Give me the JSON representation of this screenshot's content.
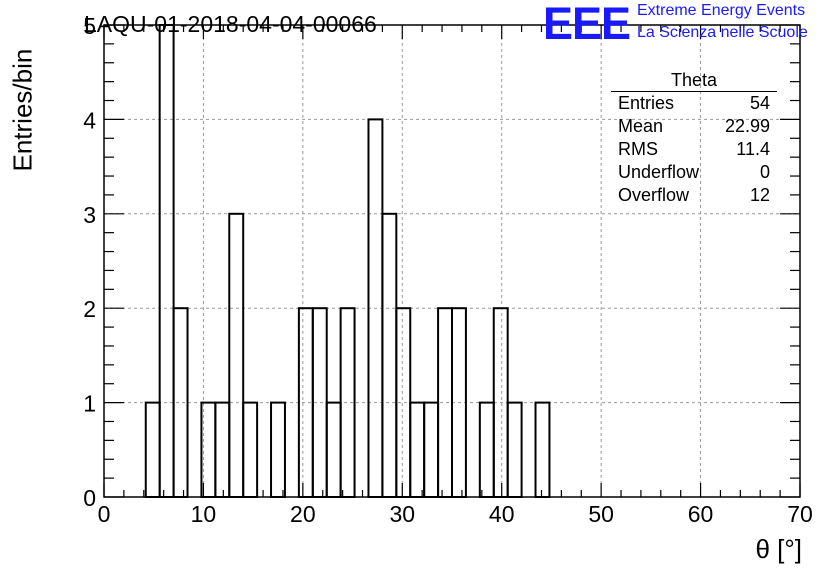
{
  "header": {
    "title": "LAQU-01-2018-04-04-00066",
    "logo_text": "EEE",
    "logo_line1": "Extreme Energy Events",
    "logo_line2": "La Scienza nelle Scuole"
  },
  "stats_box": {
    "title": "Theta",
    "rows": [
      {
        "label": "Entries",
        "value": "54"
      },
      {
        "label": "Mean",
        "value": "22.99"
      },
      {
        "label": "RMS",
        "value": "11.4"
      },
      {
        "label": "Underflow",
        "value": "0"
      },
      {
        "label": "Overflow",
        "value": "12"
      }
    ]
  },
  "colors": {
    "logo": "#1a1aff",
    "line": "#000000",
    "grid": "#9a9a9a"
  },
  "chart_data": {
    "type": "bar",
    "title": "LAQU-01-2018-04-04-00066",
    "xlabel": "θ [°]",
    "ylabel": "Entries/bin",
    "xlim": [
      0,
      70
    ],
    "ylim": [
      0,
      5
    ],
    "bin_width": 1.4,
    "grid": true,
    "x_ticks": [
      "0",
      "10",
      "20",
      "30",
      "40",
      "50",
      "60",
      "70"
    ],
    "y_ticks": [
      "0",
      "1",
      "2",
      "3",
      "4",
      "5"
    ],
    "bin_low_edges": [
      0,
      1.4,
      2.8,
      4.2,
      5.6,
      7.0,
      8.4,
      9.8,
      11.2,
      12.6,
      14.0,
      15.4,
      16.8,
      18.2,
      19.6,
      21.0,
      22.4,
      23.8,
      25.2,
      26.6,
      28.0,
      29.4,
      30.8,
      32.2,
      33.6,
      35.0,
      36.4,
      37.8,
      39.2,
      40.6,
      42.0,
      43.4,
      44.8
    ],
    "values": [
      0,
      0,
      0,
      1,
      5,
      2,
      0,
      1,
      1,
      3,
      1,
      0,
      1,
      0,
      2,
      2,
      1,
      2,
      0,
      4,
      3,
      2,
      1,
      1,
      2,
      2,
      0,
      1,
      2,
      1,
      0,
      1,
      0
    ]
  }
}
